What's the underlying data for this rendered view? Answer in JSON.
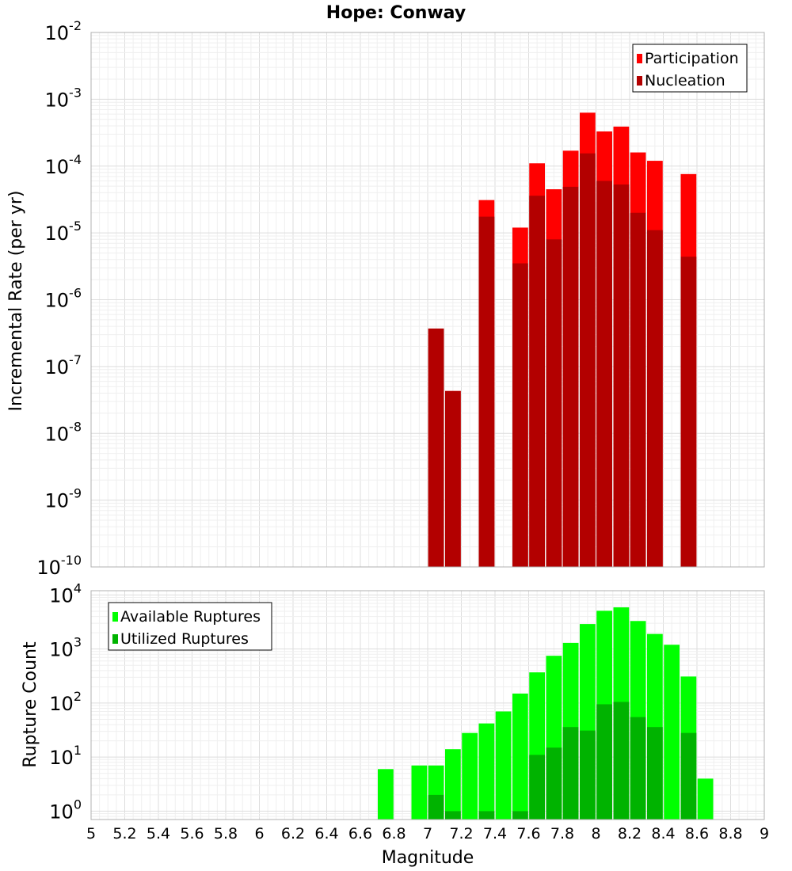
{
  "colors": {
    "participation": "#ff0000",
    "nucleation": "#b30000",
    "available": "#00ff00",
    "utilized": "#00b300",
    "grid": "#e6e6e6",
    "plot_border": "#c0c0c0"
  },
  "chart_data": [
    {
      "type": "bar",
      "title": "Hope: Conway",
      "xlabel": "",
      "ylabel": "Incremental Rate (per yr)",
      "y_scale": "log",
      "xlim": [
        5,
        9
      ],
      "ylim": [
        1e-10,
        0.01
      ],
      "grid": true,
      "legend_position": "top-right",
      "y_ticks": [
        {
          "base": "10",
          "exp": "-10"
        },
        {
          "base": "10",
          "exp": "-9"
        },
        {
          "base": "10",
          "exp": "-8"
        },
        {
          "base": "10",
          "exp": "-7"
        },
        {
          "base": "10",
          "exp": "-6"
        },
        {
          "base": "10",
          "exp": "-5"
        },
        {
          "base": "10",
          "exp": "-4"
        },
        {
          "base": "10",
          "exp": "-3"
        },
        {
          "base": "10",
          "exp": "-2"
        }
      ],
      "x": [
        7.05,
        7.15,
        7.35,
        7.55,
        7.65,
        7.75,
        7.85,
        7.95,
        8.05,
        8.15,
        8.25,
        8.35,
        8.55
      ],
      "series": [
        {
          "name": "Participation",
          "color_key": "participation",
          "values": [
            3.7e-07,
            4.3e-08,
            3.1e-05,
            1.2e-05,
            0.00011,
            4.5e-05,
            0.00017,
            0.00063,
            0.00033,
            0.00039,
            0.00016,
            0.00012,
            7.6e-05
          ]
        },
        {
          "name": "Nucleation",
          "color_key": "nucleation",
          "values": [
            3.7e-07,
            4.3e-08,
            1.75e-05,
            3.5e-06,
            3.6e-05,
            8e-06,
            4.9e-05,
            0.000155,
            6e-05,
            5.3e-05,
            2e-05,
            1.1e-05,
            4.4e-06
          ]
        }
      ]
    },
    {
      "type": "bar",
      "title": "",
      "xlabel": "Magnitude",
      "ylabel": "Rupture Count",
      "y_scale": "log",
      "xlim": [
        5,
        9
      ],
      "ylim": [
        0.7,
        12000
      ],
      "grid": true,
      "legend_position": "top-left",
      "x_ticks": [
        "5",
        "5.2",
        "5.4",
        "5.6",
        "5.8",
        "6",
        "6.2",
        "6.4",
        "6.6",
        "6.8",
        "7",
        "7.2",
        "7.4",
        "7.6",
        "7.8",
        "8",
        "8.2",
        "8.4",
        "8.6",
        "8.8",
        "9"
      ],
      "y_ticks": [
        {
          "base": "10",
          "exp": "0"
        },
        {
          "base": "10",
          "exp": "1"
        },
        {
          "base": "10",
          "exp": "2"
        },
        {
          "base": "10",
          "exp": "3"
        },
        {
          "base": "10",
          "exp": "4"
        }
      ],
      "x": [
        6.75,
        6.95,
        7.05,
        7.15,
        7.25,
        7.35,
        7.45,
        7.55,
        7.65,
        7.75,
        7.85,
        7.95,
        8.05,
        8.15,
        8.25,
        8.35,
        8.45,
        8.55,
        8.65
      ],
      "series": [
        {
          "name": "Available Ruptures",
          "color_key": "available",
          "values": [
            6,
            7,
            7,
            14,
            28,
            42,
            70,
            150,
            370,
            750,
            1300,
            2900,
            5100,
            5900,
            3300,
            1900,
            1200,
            310,
            4
          ]
        },
        {
          "name": "Utilized Ruptures",
          "color_key": "utilized",
          "values": [
            0,
            0,
            2,
            1,
            0,
            1,
            0,
            1,
            11,
            15,
            36,
            31,
            95,
            105,
            55,
            36,
            0,
            28,
            0
          ]
        }
      ]
    }
  ]
}
